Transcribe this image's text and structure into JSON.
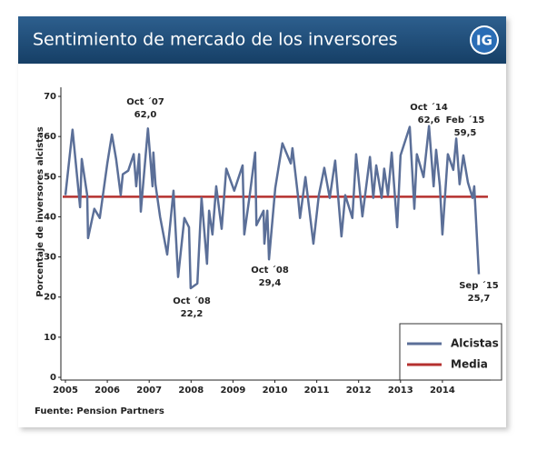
{
  "header": {
    "title": "Sentimiento de mercado de los inversores",
    "logo": "IG"
  },
  "chart_data": {
    "type": "line",
    "ylabel": "Porcentaje de inversores alcistas",
    "source": "Fuente: Pension Partners",
    "x": [
      2005.0,
      2005.17,
      2005.35,
      2005.39,
      2005.52,
      2005.54,
      2005.69,
      2005.82,
      2006.0,
      2006.11,
      2006.21,
      2006.32,
      2006.37,
      2006.5,
      2006.63,
      2006.69,
      2006.76,
      2006.8,
      2006.97,
      2007.08,
      2007.1,
      2007.15,
      2007.26,
      2007.43,
      2007.58,
      2007.69,
      2007.84,
      2007.95,
      2007.99,
      2008.15,
      2008.25,
      2008.38,
      2008.43,
      2008.51,
      2008.6,
      2008.73,
      2008.84,
      2009.03,
      2009.23,
      2009.27,
      2009.4,
      2009.53,
      2009.56,
      2009.73,
      2009.75,
      2009.82,
      2009.86,
      2010.01,
      2010.18,
      2010.38,
      2010.42,
      2010.55,
      2010.6,
      2010.73,
      2010.92,
      2011.05,
      2011.18,
      2011.31,
      2011.44,
      2011.59,
      2011.68,
      2011.85,
      2011.94,
      2012.09,
      2012.27,
      2012.35,
      2012.42,
      2012.55,
      2012.61,
      2012.7,
      2012.79,
      2012.92,
      2013.0,
      2013.22,
      2013.33,
      2013.39,
      2013.55,
      2013.68,
      2013.79,
      2013.85,
      2013.94,
      2014.0,
      2014.13,
      2014.26,
      2014.33,
      2014.41,
      2014.5,
      2014.61,
      2014.72,
      2014.76,
      2014.87
    ],
    "series": [
      {
        "name": "Alcistas",
        "color": "#5b6f98",
        "values": [
          45.4,
          61.7,
          42.4,
          54.4,
          45.4,
          34.7,
          42.0,
          39.7,
          53.3,
          60.5,
          54.4,
          45.4,
          50.6,
          51.5,
          55.6,
          47.6,
          55.6,
          41.3,
          62.0,
          47.6,
          56.0,
          48.1,
          40.0,
          30.6,
          46.5,
          25.0,
          39.7,
          37.4,
          22.2,
          23.4,
          44.7,
          28.3,
          41.5,
          35.6,
          47.6,
          37.0,
          52.0,
          46.5,
          52.8,
          35.6,
          45.4,
          56.0,
          37.9,
          41.5,
          33.3,
          41.5,
          29.4,
          47.2,
          58.3,
          53.3,
          57.1,
          45.4,
          39.7,
          49.9,
          33.3,
          45.4,
          52.2,
          44.7,
          54.0,
          35.1,
          45.4,
          39.7,
          55.6,
          40.1,
          54.9,
          44.7,
          52.8,
          44.7,
          52.0,
          45.4,
          56.0,
          37.4,
          55.3,
          62.4,
          42.0,
          55.6,
          49.9,
          62.6,
          47.6,
          56.7,
          47.6,
          35.6,
          55.6,
          51.7,
          59.5,
          48.1,
          55.3,
          48.5,
          44.7,
          47.6,
          25.7
        ]
      }
    ],
    "reference_line": {
      "name": "Media",
      "value": 45,
      "color": "#b5312f"
    },
    "annotations": [
      {
        "label": "Oct ´07",
        "value_label": "62,0"
      },
      {
        "label": "Oct ´08",
        "value_label": "22,2"
      },
      {
        "label": "Oct ´08",
        "value_label": "29,4"
      },
      {
        "label": "Oct ´14",
        "value_label": "62,6"
      },
      {
        "label": "Feb ´15",
        "value_label": "59,5"
      },
      {
        "label": "Sep ´15",
        "value_label": "25,7"
      }
    ],
    "xlim": [
      2005,
      2015
    ],
    "ylim": [
      0,
      70
    ],
    "xticks": [
      2005,
      2006,
      2007,
      2008,
      2009,
      2010,
      2011,
      2012,
      2013,
      2014
    ],
    "yticks": [
      0,
      10,
      20,
      30,
      40,
      50,
      60,
      70
    ],
    "legend": "bottom-right"
  }
}
